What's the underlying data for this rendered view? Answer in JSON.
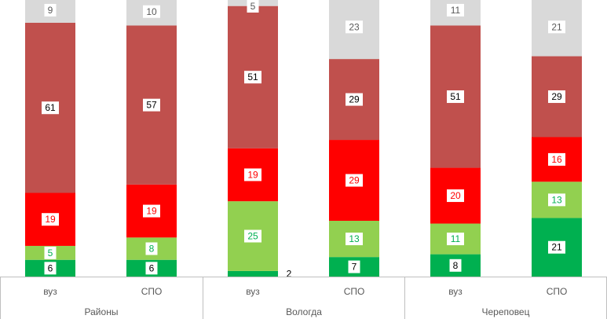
{
  "chart_data": {
    "type": "bar",
    "stacked": true,
    "groups": [
      {
        "label": "Районы",
        "bars": [
          {
            "label": "вуз",
            "values": [
              6,
              5,
              19,
              61,
              9
            ]
          },
          {
            "label": "СПО",
            "values": [
              6,
              8,
              19,
              57,
              10
            ]
          }
        ]
      },
      {
        "label": "Вологда",
        "bars": [
          {
            "label": "вуз",
            "values": [
              2,
              25,
              19,
              51,
              5
            ]
          },
          {
            "label": "СПО",
            "values": [
              7,
              13,
              29,
              29,
              23
            ]
          }
        ]
      },
      {
        "label": "Череповец",
        "bars": [
          {
            "label": "вуз",
            "values": [
              8,
              11,
              20,
              51,
              11
            ]
          },
          {
            "label": "СПО",
            "values": [
              21,
              13,
              16,
              29,
              21
            ]
          }
        ]
      }
    ],
    "segment_colors": [
      "#00b050",
      "#92d050",
      "#ff0000",
      "#c0504d",
      "#d9d9d9"
    ],
    "label_colors": [
      "#000000",
      "#00b050",
      "#ff0000",
      "#000000",
      "#595959"
    ],
    "ylim": [
      0,
      100
    ]
  },
  "axis": {
    "labels": {
      "rayony": "Районы",
      "vologda": "Вологда",
      "cherepovets": "Череповец"
    },
    "bars": {
      "rayony_vuz": "вуз",
      "rayony_spo": "СПО",
      "vologda_vuz": "вуз",
      "vologda_spo": "СПО",
      "cherepovets_vuz": "вуз",
      "cherepovets_spo": "СПО"
    }
  }
}
